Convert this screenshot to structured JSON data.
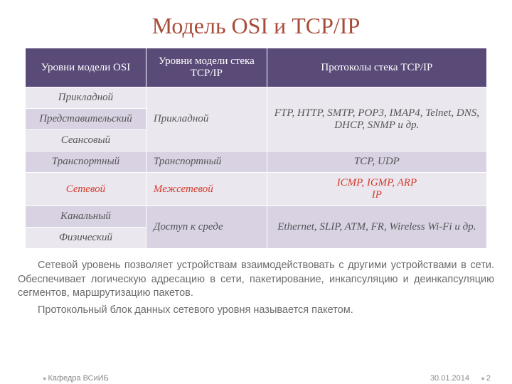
{
  "title": "Модель OSI и TCP/IP",
  "table": {
    "headers": {
      "osi": "Уровни модели OSI",
      "tcpip": "Уровни модели стека TCP/IP",
      "protocols": "Протоколы стека TCP/IP"
    },
    "osi_layers": {
      "application": "Прикладной",
      "presentation": "Представительский",
      "session": "Сеансовый",
      "transport": "Транспортный",
      "network": "Сетевой",
      "datalink": "Канальный",
      "physical": "Физический"
    },
    "tcpip_layers": {
      "application": "Прикладной",
      "transport": "Транспортный",
      "internet": "Межсетевой",
      "access": "Доступ к среде"
    },
    "protocols": {
      "application": "FTP, HTTP, SMTP, POP3, IMAP4, Telnet, DNS, DHCP, SNMP и др.",
      "transport": "TCP, UDP",
      "internet_line1": "ICMP, IGMP, ARP",
      "internet_line2": "IP",
      "access": "Ethernet, SLIP, ATM, FR, Wireless Wi-Fi и др."
    }
  },
  "paragraph1": "Сетевой уровень позволяет устройствам взаимодействовать с другими устройствами в сети. Обеспечивает логическую адресацию в сети, пакетирование, инкапсуляцию и деинкапсуляцию сегментов, маршрутизацию пакетов.",
  "paragraph2": "Протокольный блок данных сетевого уровня называется пакетом.",
  "footer": {
    "dept": "Кафедра ВСиИБ",
    "date": "30.01.2014",
    "page": "2"
  },
  "colors": {
    "title": "#a84c3a",
    "header_bg": "#5a4a78",
    "band_a": "#eae7ef",
    "band_b": "#d8d2e3",
    "highlight": "#d63a2a",
    "body_text": "#555555",
    "para_text": "#6b6b6b"
  }
}
